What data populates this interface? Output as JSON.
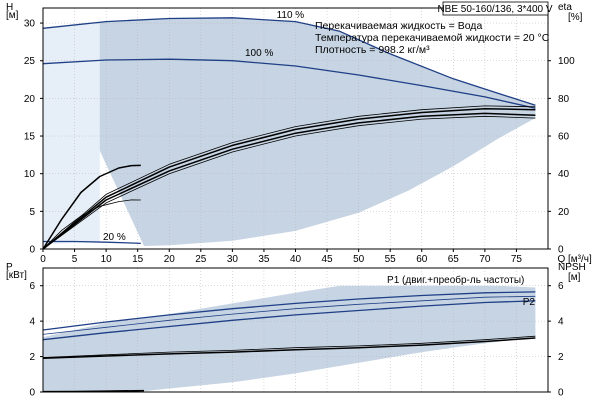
{
  "model": "NBE 50-160/136, 3*400 V",
  "info": [
    "Перекачиваемая жидкость = Вода",
    "Температура перекачиваемой жидкости = 20 °C",
    "Плотность = 998.2 кг/м³"
  ],
  "colors": {
    "band": "#c6d4e3",
    "band_light": "#e6eef7",
    "curve_blue": "#1f3f86",
    "curve_black": "#000000",
    "grid": "#b5b5b5",
    "frame": "#000000"
  },
  "chart_data": [
    {
      "type": "line",
      "title": "",
      "xlabel": "Q [м³/ч]",
      "ylabel": "H",
      "ylabel_unit": "[м]",
      "y2label": "eta",
      "y2label_unit": "[%]",
      "xlim": [
        0,
        80
      ],
      "ylim": [
        0,
        32
      ],
      "y2lim": [
        0,
        128
      ],
      "x_ticks": [
        0,
        5,
        10,
        15,
        20,
        25,
        30,
        35,
        40,
        45,
        50,
        55,
        60,
        65,
        70,
        75
      ],
      "x_tick_labels": [
        "0",
        "5",
        "10",
        "15",
        "20",
        "25",
        "30",
        "35",
        "40",
        "45",
        "50",
        "55",
        "60",
        "65",
        "70",
        "75"
      ],
      "y_ticks": [
        0,
        5,
        10,
        15,
        20,
        25,
        30
      ],
      "y_tick_labels": [
        "0",
        "5",
        "10",
        "15",
        "20",
        "25",
        "30"
      ],
      "y2_ticks": [
        0,
        20,
        40,
        60,
        80,
        100
      ],
      "y2_tick_labels": [
        "0",
        "20",
        "40",
        "60",
        "80",
        "100"
      ],
      "grid": true,
      "band": {
        "upper": [
          [
            0,
            29.3
          ],
          [
            3,
            29.6
          ],
          [
            6,
            30.0
          ],
          [
            10,
            30.2
          ],
          [
            20,
            30.6
          ],
          [
            30,
            30.7
          ],
          [
            40,
            30.2
          ],
          [
            47,
            28.9
          ],
          [
            55,
            25.9
          ],
          [
            65,
            22.6
          ],
          [
            72,
            20.7
          ],
          [
            78,
            19.1
          ]
        ],
        "lower": [
          [
            78,
            17.4
          ],
          [
            72,
            14.6
          ],
          [
            65,
            11.0
          ],
          [
            58,
            7.8
          ],
          [
            50,
            4.8
          ],
          [
            40,
            2.4
          ],
          [
            30,
            1.1
          ],
          [
            20,
            0.5
          ],
          [
            16,
            0.4
          ]
        ]
      },
      "light_region": {
        "upper": [
          [
            0,
            29.3
          ],
          [
            6,
            30.0
          ],
          [
            9,
            29.9
          ]
        ],
        "lower": [
          [
            9,
            1.0
          ],
          [
            0,
            0.6
          ]
        ]
      },
      "series": [
        {
          "name": "110 %",
          "label_at": [
            37,
            30.7
          ],
          "role": "head",
          "points": [
            [
              0,
              29.3
            ],
            [
              10,
              30.2
            ],
            [
              20,
              30.6
            ],
            [
              30,
              30.7
            ],
            [
              40,
              30.2
            ],
            [
              47,
              28.9
            ],
            [
              55,
              25.9
            ],
            [
              65,
              22.6
            ],
            [
              72,
              20.7
            ],
            [
              78,
              19.1
            ]
          ]
        },
        {
          "name": "100 %",
          "label_at": [
            32,
            25.6
          ],
          "role": "head",
          "points": [
            [
              0,
              24.6
            ],
            [
              10,
              25.1
            ],
            [
              20,
              25.2
            ],
            [
              30,
              25.0
            ],
            [
              40,
              24.3
            ],
            [
              50,
              23.1
            ],
            [
              60,
              21.7
            ],
            [
              70,
              20.2
            ],
            [
              78,
              18.7
            ]
          ]
        },
        {
          "name": "20 %",
          "label_at": [
            9.5,
            1.2
          ],
          "role": "head",
          "points": [
            [
              0,
              1.0
            ],
            [
              5,
              1.0
            ],
            [
              10,
              0.9
            ],
            [
              14,
              0.8
            ],
            [
              15.5,
              0.75
            ]
          ]
        },
        {
          "name": "",
          "role": "eta_thin",
          "points": [
            [
              0,
              0
            ],
            [
              3,
              10.0
            ],
            [
              6,
              17.5
            ],
            [
              9,
              22.7
            ],
            [
              12,
              25.2
            ],
            [
              14,
              26.1
            ],
            [
              15.5,
              26.0
            ]
          ]
        },
        {
          "name": "",
          "role": "eta",
          "points": [
            [
              0,
              0
            ],
            [
              3,
              16.0
            ],
            [
              6,
              30.0
            ],
            [
              9,
              38.5
            ],
            [
              12,
              43.0
            ],
            [
              14,
              44.3
            ],
            [
              15.5,
              44.4
            ]
          ]
        },
        {
          "name": "",
          "role": "eta_thin",
          "points": [
            [
              0,
              0
            ],
            [
              10,
              29.0
            ],
            [
              20,
              45.0
            ],
            [
              30,
              56.5
            ],
            [
              40,
              65.0
            ],
            [
              50,
              70.5
            ],
            [
              60,
              74.0
            ],
            [
              70,
              76.0
            ],
            [
              78,
              75.5
            ]
          ]
        },
        {
          "name": "",
          "role": "eta",
          "points": [
            [
              0,
              0
            ],
            [
              10,
              27.5
            ],
            [
              20,
              43.5
            ],
            [
              30,
              55.0
            ],
            [
              40,
              63.5
            ],
            [
              50,
              69.0
            ],
            [
              60,
              72.5
            ],
            [
              70,
              74.5
            ],
            [
              78,
              74.0
            ]
          ]
        },
        {
          "name": "",
          "role": "eta",
          "points": [
            [
              0,
              0
            ],
            [
              10,
              26.0
            ],
            [
              20,
              41.5
            ],
            [
              30,
              53.0
            ],
            [
              40,
              61.5
            ],
            [
              50,
              67.0
            ],
            [
              60,
              70.5
            ],
            [
              70,
              72.0
            ],
            [
              78,
              71.0
            ]
          ]
        },
        {
          "name": "",
          "role": "eta_thin",
          "points": [
            [
              0,
              0
            ],
            [
              10,
              24.5
            ],
            [
              20,
              40.0
            ],
            [
              30,
              51.5
            ],
            [
              40,
              60.0
            ],
            [
              50,
              65.5
            ],
            [
              60,
              69.0
            ],
            [
              70,
              70.5
            ],
            [
              78,
              69.5
            ]
          ]
        }
      ]
    },
    {
      "type": "line",
      "title": "",
      "xlabel": "",
      "ylabel": "P",
      "ylabel_unit": "[кВт]",
      "y2label": "NPSH",
      "y2label_unit": "[м]",
      "xlim": [
        0,
        80
      ],
      "ylim": [
        0,
        7
      ],
      "y2lim": [
        0,
        7
      ],
      "y_ticks": [
        0,
        2,
        4,
        6
      ],
      "y_tick_labels": [
        "0",
        "2",
        "4",
        "6"
      ],
      "y2_ticks": [
        0,
        2,
        4,
        6
      ],
      "y2_tick_labels": [
        "0",
        "2",
        "4",
        "6"
      ],
      "grid": true,
      "band": {
        "upper": [
          [
            0,
            3.1
          ],
          [
            10,
            3.9
          ],
          [
            20,
            4.4
          ],
          [
            30,
            5.0
          ],
          [
            40,
            5.6
          ],
          [
            47,
            6.0
          ],
          [
            55,
            6.0
          ],
          [
            65,
            6.0
          ],
          [
            72,
            6.0
          ],
          [
            78,
            5.9
          ]
        ],
        "lower": [
          [
            78,
            3.1
          ],
          [
            70,
            2.75
          ],
          [
            60,
            2.25
          ],
          [
            50,
            1.65
          ],
          [
            40,
            1.05
          ],
          [
            30,
            0.55
          ],
          [
            20,
            0.2
          ],
          [
            16,
            0.05
          ],
          [
            0,
            0.05
          ]
        ]
      },
      "series": [
        {
          "name": "P1 (двиг.+преобр-ль частоты)",
          "label_at": [
            54.5,
            6.15
          ],
          "role": "p1",
          "points": [
            [
              0,
              3.5
            ],
            [
              10,
              3.95
            ],
            [
              20,
              4.35
            ],
            [
              30,
              4.7
            ],
            [
              40,
              5.0
            ],
            [
              50,
              5.25
            ],
            [
              60,
              5.45
            ],
            [
              70,
              5.6
            ],
            [
              78,
              5.65
            ]
          ]
        },
        {
          "name": "P2",
          "label_at": [
            76,
            4.9
          ],
          "role": "p2",
          "points": [
            [
              0,
              2.95
            ],
            [
              10,
              3.35
            ],
            [
              20,
              3.7
            ],
            [
              30,
              4.05
            ],
            [
              40,
              4.35
            ],
            [
              50,
              4.6
            ],
            [
              60,
              4.85
            ],
            [
              70,
              5.05
            ],
            [
              78,
              5.15
            ]
          ]
        },
        {
          "name": "",
          "role": "p_thin",
          "points": [
            [
              0,
              3.25
            ],
            [
              10,
              3.65
            ],
            [
              20,
              4.05
            ],
            [
              30,
              4.4
            ],
            [
              40,
              4.7
            ],
            [
              50,
              4.95
            ],
            [
              60,
              5.15
            ],
            [
              70,
              5.35
            ],
            [
              78,
              5.4
            ]
          ]
        },
        {
          "name": "",
          "role": "npsh_thin",
          "points": [
            [
              0,
              1.95
            ],
            [
              10,
              2.1
            ],
            [
              20,
              2.25
            ],
            [
              30,
              2.35
            ],
            [
              40,
              2.5
            ],
            [
              50,
              2.6
            ],
            [
              60,
              2.75
            ],
            [
              70,
              2.95
            ],
            [
              78,
              3.15
            ]
          ]
        },
        {
          "name": "",
          "role": "npsh",
          "points": [
            [
              0,
              1.9
            ],
            [
              10,
              2.03
            ],
            [
              20,
              2.15
            ],
            [
              30,
              2.25
            ],
            [
              40,
              2.38
            ],
            [
              50,
              2.5
            ],
            [
              60,
              2.65
            ],
            [
              70,
              2.85
            ],
            [
              78,
              3.05
            ]
          ]
        },
        {
          "name": "",
          "role": "npsh_low",
          "points": [
            [
              0,
              0.02
            ],
            [
              5,
              0.03
            ],
            [
              10,
              0.05
            ],
            [
              16,
              0.08
            ]
          ]
        }
      ]
    }
  ]
}
